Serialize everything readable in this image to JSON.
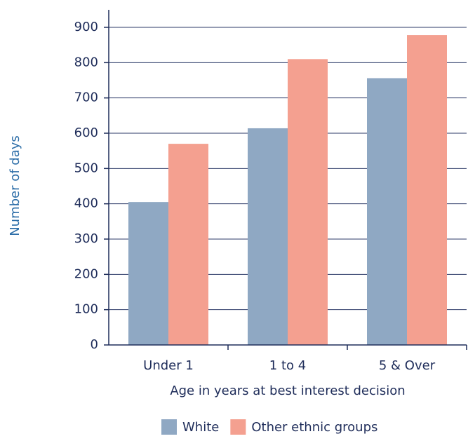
{
  "chart_data": {
    "type": "bar",
    "y_label": "Number of days",
    "x_label": "Age in years at best interest decision",
    "categories": [
      "Under 1",
      "1 to 4",
      "5 & Over"
    ],
    "series": [
      {
        "name": "White",
        "color": "#8fa8c3",
        "values": [
          405,
          614,
          756
        ]
      },
      {
        "name": "Other ethnic groups",
        "color": "#f4a090",
        "values": [
          570,
          810,
          878
        ]
      }
    ],
    "ylim": [
      0,
      900
    ],
    "yticks": [
      0,
      100,
      200,
      300,
      400,
      500,
      600,
      700,
      800,
      900
    ],
    "grid": true,
    "legend": "bottom"
  }
}
